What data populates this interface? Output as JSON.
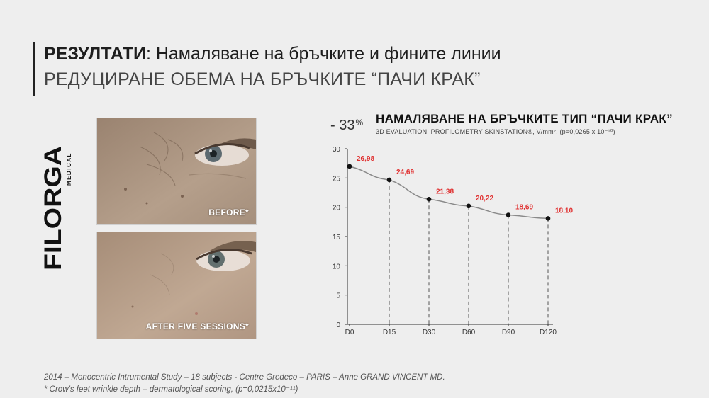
{
  "header": {
    "title_bold": "РЕЗУЛТАТИ",
    "title_rest": ": Намаляване на бръчките и фините линии",
    "subtitle": "РЕДУЦИРАНЕ ОБЕМА НА БРЪЧКИТЕ “ПАЧИ КРАК”"
  },
  "brand": {
    "name": "FILORGA",
    "sub": "MEDICAL"
  },
  "photos": {
    "before_label": "BEFORE*",
    "after_label": "AFTER FIVE SESSIONS*"
  },
  "reduction": {
    "value": "- 33",
    "unit": "%"
  },
  "chart_data": {
    "type": "line",
    "title": "НАМАЛЯВАНЕ НА БРЪЧКИТЕ ТИП “ПАЧИ КРАК”",
    "subtitle": "3D EVALUATION, PROFILOMETRY SKINSTATION®, V/mm², (p=0,0265  x 10⁻¹⁰)",
    "categories": [
      "D0",
      "D15",
      "D30",
      "D60",
      "D90",
      "D120"
    ],
    "values": [
      26.98,
      24.69,
      21.38,
      20.22,
      18.69,
      18.1
    ],
    "value_labels": [
      "26,98",
      "24,69",
      "21,38",
      "20,22",
      "18,69",
      "18,10"
    ],
    "ylim": [
      0,
      30
    ],
    "yticks": [
      0,
      5,
      10,
      15,
      20,
      25,
      30
    ],
    "grid": false,
    "colors": {
      "line": "#8a8a8a",
      "points": "#111111",
      "labels": "#e03030",
      "axis": "#333333"
    }
  },
  "footnotes": {
    "line1": "2014 – Monocentric Intrumental Study – 18 subjects - Centre Gredeco – PARIS – Anne GRAND VINCENT MD.",
    "line2": "* Crow’s feet wrinkle depth – dermatological scoring, (p=0,0215x10⁻¹¹)"
  }
}
